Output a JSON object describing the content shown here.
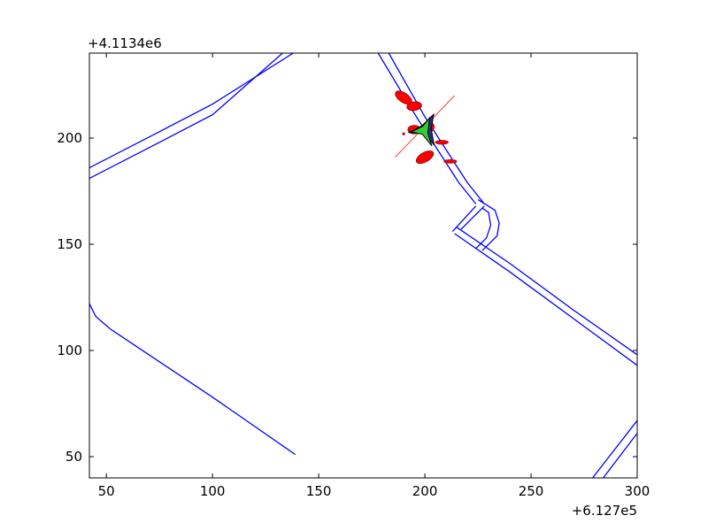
{
  "chart_data": {
    "type": "line",
    "title": "",
    "xlabel": "",
    "ylabel": "",
    "x_offset_label": "+6.127e5",
    "y_offset_label": "+4.1134e6",
    "xlim": [
      42,
      300
    ],
    "ylim": [
      40,
      240
    ],
    "x_ticks": [
      50,
      100,
      150,
      200,
      250,
      300
    ],
    "y_ticks": [
      50,
      100,
      150,
      200
    ],
    "grid": false,
    "colors": {
      "lanes": "#0000ff",
      "obstacles": "#ff0000",
      "ego": "#33cc33",
      "frame": "#000000"
    },
    "series": [
      {
        "kind": "lane",
        "points": [
          [
            42,
            186
          ],
          [
            75,
            203
          ],
          [
            100,
            216
          ],
          [
            138,
            240
          ]
        ]
      },
      {
        "kind": "lane",
        "points": [
          [
            42,
            181
          ],
          [
            75,
            198
          ],
          [
            100,
            211
          ],
          [
            133,
            240
          ]
        ]
      },
      {
        "kind": "lane",
        "points": [
          [
            183,
            240
          ],
          [
            200,
            210
          ],
          [
            220,
            179
          ],
          [
            228,
            169
          ]
        ]
      },
      {
        "kind": "lane",
        "points": [
          [
            178,
            240
          ],
          [
            196,
            210
          ],
          [
            216,
            179
          ],
          [
            224,
            169
          ]
        ]
      },
      {
        "kind": "lane",
        "points": [
          [
            224,
            168
          ],
          [
            213,
            156
          ]
        ]
      },
      {
        "kind": "lane",
        "points": [
          [
            228,
            168
          ],
          [
            217,
            157
          ]
        ]
      },
      {
        "kind": "lane",
        "points": [
          [
            225,
            171
          ],
          [
            233,
            166
          ],
          [
            235,
            160
          ],
          [
            234,
            154
          ],
          [
            227,
            147
          ]
        ]
      },
      {
        "kind": "lane",
        "points": [
          [
            227,
            167
          ],
          [
            230,
            165
          ],
          [
            231,
            159
          ],
          [
            229,
            153
          ],
          [
            224,
            148
          ]
        ]
      },
      {
        "kind": "lane",
        "points": [
          [
            215,
            158
          ],
          [
            240,
            141
          ],
          [
            270,
            119
          ],
          [
            300,
            98
          ]
        ]
      },
      {
        "kind": "lane",
        "points": [
          [
            214,
            155
          ],
          [
            240,
            137
          ],
          [
            270,
            115
          ],
          [
            300,
            93
          ]
        ]
      },
      {
        "kind": "lane",
        "points": [
          [
            42,
            122
          ],
          [
            45,
            116
          ],
          [
            52,
            110
          ],
          [
            100,
            78
          ],
          [
            139,
            51
          ]
        ]
      },
      {
        "kind": "lane",
        "points": [
          [
            279,
            40
          ],
          [
            300,
            67
          ]
        ]
      },
      {
        "kind": "lane",
        "points": [
          [
            284,
            40
          ],
          [
            300,
            61
          ]
        ]
      }
    ],
    "obstacles": [
      {
        "x": 190,
        "y": 219,
        "rx": 4.5,
        "ry": 2.2,
        "angle": -35
      },
      {
        "x": 195,
        "y": 215,
        "rx": 3.5,
        "ry": 2,
        "angle": 10
      },
      {
        "x": 195,
        "y": 204,
        "rx": 3,
        "ry": 2,
        "angle": 0
      },
      {
        "x": 202,
        "y": 205,
        "rx": 2.5,
        "ry": 2.2,
        "angle": 40
      },
      {
        "x": 208,
        "y": 198,
        "rx": 3,
        "ry": 0.9,
        "angle": 0
      },
      {
        "x": 200,
        "y": 191,
        "rx": 4.5,
        "ry": 2.2,
        "angle": 30
      },
      {
        "x": 212,
        "y": 189,
        "rx": 3,
        "ry": 0.8,
        "angle": 0
      },
      {
        "x": 190,
        "y": 202,
        "rx": 0.5,
        "ry": 0.5,
        "angle": 0
      }
    ],
    "trajectory_line": [
      [
        186,
        191
      ],
      [
        214,
        220
      ]
    ],
    "ego": {
      "x": 200,
      "y": 204,
      "heading_deg": 60
    }
  }
}
